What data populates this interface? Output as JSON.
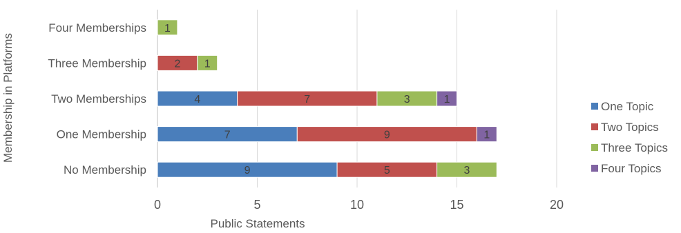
{
  "chart_data": {
    "type": "bar",
    "orientation": "horizontal",
    "stacked": true,
    "xlabel": "Public Statements",
    "ylabel": "Membership in Platforms",
    "xlim": [
      0,
      20
    ],
    "x_ticks": [
      0,
      5,
      10,
      15,
      20
    ],
    "grid": "vertical major gridlines",
    "legend_position": "right",
    "categories": [
      "No Membership",
      "One Membership",
      "Two Memberships",
      "Three Membership",
      "Four Memberships"
    ],
    "series": [
      {
        "name": "One Topic",
        "color": "#4a7ebb",
        "values": [
          9,
          7,
          4,
          0,
          0
        ]
      },
      {
        "name": "Two Topics",
        "color": "#c0504d",
        "values": [
          5,
          9,
          7,
          2,
          0
        ]
      },
      {
        "name": "Three Topics",
        "color": "#9bbb59",
        "values": [
          3,
          0,
          3,
          1,
          1
        ]
      },
      {
        "name": "Four Topics",
        "color": "#8064a2",
        "values": [
          0,
          1,
          1,
          0,
          0
        ]
      }
    ]
  }
}
